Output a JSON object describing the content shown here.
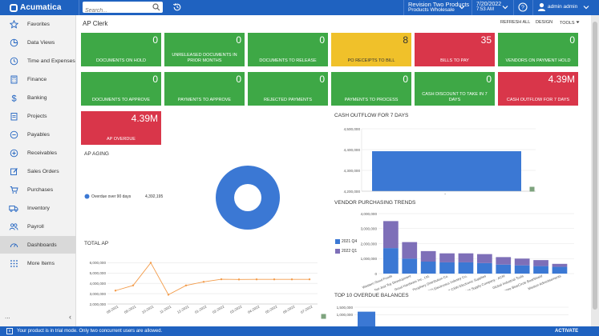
{
  "topbar": {
    "logo_text": "Acumatica",
    "search_placeholder": "Search...",
    "tenant": "Revision Two Products",
    "branch": "Products Wholesale",
    "date": "7/20/2022",
    "time": "7:53 AM",
    "user": "admin admin"
  },
  "sidebar": {
    "items": [
      {
        "label": "Favorites",
        "icon": "star-icon"
      },
      {
        "label": "Data Views",
        "icon": "pie-icon"
      },
      {
        "label": "Time and Expenses",
        "icon": "clock-icon"
      },
      {
        "label": "Finance",
        "icon": "calculator-icon"
      },
      {
        "label": "Banking",
        "icon": "dollar-icon"
      },
      {
        "label": "Projects",
        "icon": "clipboard-icon"
      },
      {
        "label": "Payables",
        "icon": "minus-circle-icon"
      },
      {
        "label": "Receivables",
        "icon": "plus-circle-icon"
      },
      {
        "label": "Sales Orders",
        "icon": "edit-icon"
      },
      {
        "label": "Purchases",
        "icon": "cart-icon"
      },
      {
        "label": "Inventory",
        "icon": "truck-icon"
      },
      {
        "label": "Payroll",
        "icon": "people-icon"
      },
      {
        "label": "Dashboards",
        "icon": "gauge-icon"
      }
    ],
    "more_items": "More Items",
    "more_dots": "...",
    "collapse": "‹"
  },
  "dashboard": {
    "title": "AP Clerk",
    "refresh_all": "REFRESH ALL",
    "design": "DESIGN",
    "tools": "TOOLS",
    "tiles": [
      {
        "value": "0",
        "label": "DOCUMENTS ON HOLD",
        "color": "green"
      },
      {
        "value": "0",
        "label": "UNRELEASED DOCUMENTS IN PRIOR MONTHS",
        "color": "green"
      },
      {
        "value": "0",
        "label": "DOCUMENTS TO RELEASE",
        "color": "green"
      },
      {
        "value": "8",
        "label": "PO RECEIPTS TO BILL",
        "color": "yellow"
      },
      {
        "value": "35",
        "label": "BILLS TO PAY",
        "color": "red"
      },
      {
        "value": "0",
        "label": "VENDORS ON PAYMENT HOLD",
        "color": "green"
      },
      {
        "value": "0",
        "label": "DOCUMENTS TO APPROVE",
        "color": "green"
      },
      {
        "value": "0",
        "label": "PAYMENTS TO APPROVE",
        "color": "green"
      },
      {
        "value": "0",
        "label": "REJECTED PAYMENTS",
        "color": "green"
      },
      {
        "value": "0",
        "label": "PAYMENTS TO PROCESS",
        "color": "green"
      },
      {
        "value": "0",
        "label": "CASH DISCOUNT TO TAKE IN 7 DAYS",
        "color": "green"
      },
      {
        "value": "4.39M",
        "label": "CASH OUTFLOW FOR 7 DAYS",
        "color": "red"
      },
      {
        "value": "4.39M",
        "label": "AP OVERDUE",
        "color": "red"
      }
    ]
  },
  "colors": {
    "green": "#3ea846",
    "yellow": "#f0c12a",
    "red": "#d9364a",
    "blue": "#3b78d4",
    "purple": "#7e6fb8",
    "orange": "#f39c4b",
    "brand": "#1f62c0"
  },
  "widgets": {
    "ap_aging": {
      "title": "AP AGING",
      "legend_label": "Overdue over 90 days",
      "legend_value": "4,392,195"
    },
    "total_ap": {
      "title": "TOTAL AP",
      "y_ticks": [
        "6,000,000",
        "5,000,000",
        "4,000,000",
        "3,000,000",
        "2,000,000"
      ],
      "x_ticks": [
        "08-2021",
        "09-2021",
        "10-2021",
        "11-2021",
        "12-2021",
        "01-2022",
        "02-2022",
        "03-2022",
        "04-2022",
        "05-2022",
        "06-2022",
        "07-2022"
      ]
    },
    "cash_outflow": {
      "title": "CASH OUTFLOW FOR 7 DAYS",
      "y_ticks": [
        "4,500,000",
        "4,400,000",
        "4,300,000",
        "4,200,000"
      ],
      "category": "Overdue"
    },
    "vendor_trends": {
      "title": "VENDOR PURCHASING TRENDS",
      "y_ticks": [
        "4,000,000",
        "3,000,000",
        "2,000,000",
        "1,000,000",
        "0"
      ],
      "legend": [
        "2021 Q4",
        "2022 Q1"
      ],
      "vendors": [
        "Western Good Foods",
        "Not Just Toy Development",
        "Good Hardware Inc., Ltd.",
        "Periphery Distribution Co.",
        "SCMEO Electronics Industry Co.",
        "East CSW Electronic Supplies",
        "Budget Supply Company - ACM",
        "Global Industrial Tools",
        "Empire BlueCircle BoatShield",
        "Mission Advertisements"
      ]
    },
    "top_overdue": {
      "title": "TOP 10 OVERDUE BALANCES",
      "y_ticks": [
        "1,500,000",
        "1,000,000"
      ]
    }
  },
  "chart_data": [
    {
      "type": "pie",
      "title": "AP AGING",
      "categories": [
        "Overdue over 90 days"
      ],
      "values": [
        4392195
      ]
    },
    {
      "type": "line",
      "title": "TOTAL AP",
      "x": [
        "08-2021",
        "09-2021",
        "10-2021",
        "11-2021",
        "12-2021",
        "01-2022",
        "02-2022",
        "03-2022",
        "04-2022",
        "05-2022",
        "06-2022",
        "07-2022"
      ],
      "series": [
        {
          "values": [
            3300000,
            3800000,
            6000000,
            2900000,
            3800000,
            4150000,
            4400000,
            4380000,
            4390000,
            4390000,
            4390000,
            4392195
          ]
        }
      ],
      "ylim": [
        2000000,
        6500000
      ]
    },
    {
      "type": "bar",
      "title": "CASH OUTFLOW FOR 7 DAYS",
      "categories": [
        "Overdue"
      ],
      "values": [
        4392195
      ],
      "ylim": [
        4200000,
        4500000
      ]
    },
    {
      "type": "bar",
      "title": "VENDOR PURCHASING TRENDS",
      "stacked": true,
      "categories": [
        "Western Good Foods",
        "Not Just Toy Development",
        "Good Hardware Inc., Ltd.",
        "Periphery Distribution Co.",
        "SCMEO Electronics Industry Co.",
        "East CSW Electronic Supplies",
        "Budget Supply Company - ACM",
        "Global Industrial Tools",
        "Empire BlueCircle BoatShield",
        "Mission Advertisements"
      ],
      "series": [
        {
          "name": "2021 Q4",
          "values": [
            1700000,
            1000000,
            800000,
            750000,
            750000,
            700000,
            600000,
            550000,
            500000,
            450000
          ]
        },
        {
          "name": "2022 Q1",
          "values": [
            1800000,
            1100000,
            700000,
            600000,
            600000,
            600000,
            500000,
            450000,
            400000,
            200000
          ]
        }
      ],
      "ylim": [
        0,
        4000000
      ]
    },
    {
      "type": "bar",
      "title": "TOP 10 OVERDUE BALANCES",
      "categories": [
        ""
      ],
      "values": [
        1200000
      ],
      "ylim": [
        0,
        1500000
      ]
    }
  ],
  "footer": {
    "trial_text": "Your product is in trial mode. Only two concurrent users are allowed.",
    "activate": "ACTIVATE"
  }
}
